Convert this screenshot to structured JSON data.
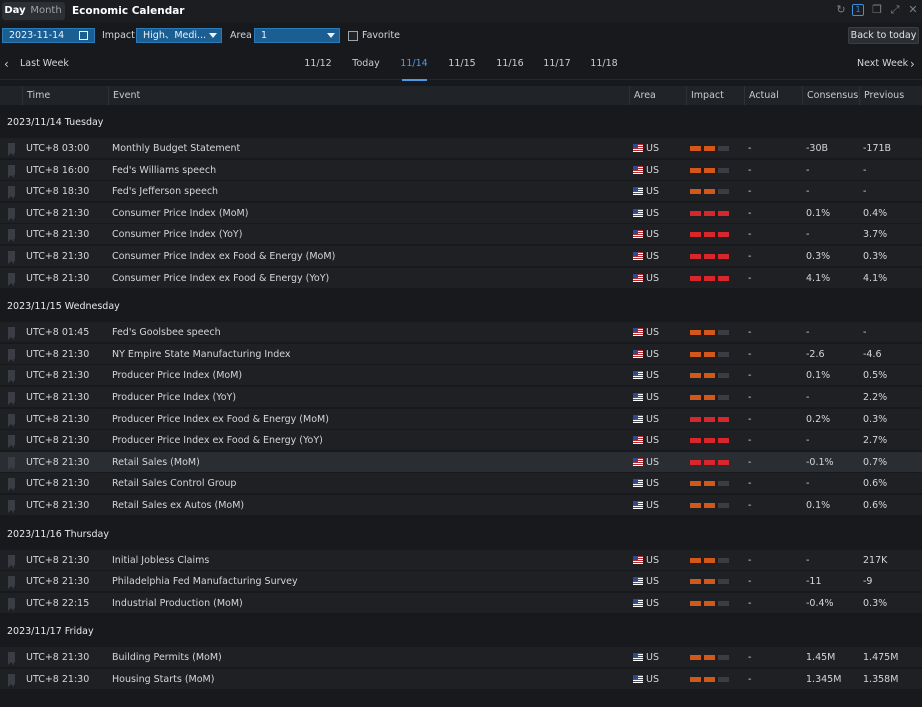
{
  "titlebar": {
    "tabs": [
      "Day",
      "Month"
    ],
    "title": "Economic Calendar",
    "link_badge": "1"
  },
  "filters": {
    "date": "2023-11-14",
    "impact_label": "Impact",
    "impact_value": "High、Medi...",
    "area_label": "Area",
    "area_value": "1",
    "favorite_label": "Favorite",
    "back_to_today": "Back to today"
  },
  "weeknav": {
    "prev": "Last Week",
    "next": "Next Week",
    "days": [
      "11/12",
      "Today",
      "11/14",
      "11/15",
      "11/16",
      "11/17",
      "11/18"
    ],
    "active_index": 2
  },
  "columns": [
    "Time",
    "Event",
    "Area",
    "Impact",
    "Actual",
    "Consensus",
    "Previous"
  ],
  "colors": {
    "high": "#d7262c",
    "medium": "#d4571a",
    "inactive": "#3a3d42",
    "accent": "#4c9ae6"
  },
  "groups": [
    {
      "title": "2023/11/14 Tuesday",
      "rows": [
        {
          "time": "UTC+8 03:00",
          "event": "Monthly Budget Statement",
          "area": "US",
          "impact": "medium",
          "actual": "-",
          "consensus": "-30B",
          "previous": "-171B"
        },
        {
          "time": "UTC+8 16:00",
          "event": "Fed's Williams speech",
          "area": "US",
          "impact": "medium",
          "actual": "-",
          "consensus": "-",
          "previous": "-"
        },
        {
          "time": "UTC+8 18:30",
          "event": "Fed's Jefferson speech",
          "area": "US",
          "impact": "medium",
          "actual": "-",
          "consensus": "-",
          "previous": "-"
        },
        {
          "time": "UTC+8 21:30",
          "event": "Consumer Price Index (MoM)",
          "area": "US",
          "impact": "high",
          "actual": "-",
          "consensus": "0.1%",
          "previous": "0.4%"
        },
        {
          "time": "UTC+8 21:30",
          "event": "Consumer Price Index (YoY)",
          "area": "US",
          "impact": "high",
          "actual": "-",
          "consensus": "-",
          "previous": "3.7%"
        },
        {
          "time": "UTC+8 21:30",
          "event": "Consumer Price Index ex Food & Energy (MoM)",
          "area": "US",
          "impact": "high",
          "actual": "-",
          "consensus": "0.3%",
          "previous": "0.3%"
        },
        {
          "time": "UTC+8 21:30",
          "event": "Consumer Price Index ex Food & Energy (YoY)",
          "area": "US",
          "impact": "high",
          "actual": "-",
          "consensus": "4.1%",
          "previous": "4.1%"
        }
      ]
    },
    {
      "title": "2023/11/15 Wednesday",
      "rows": [
        {
          "time": "UTC+8 01:45",
          "event": "Fed's Goolsbee speech",
          "area": "US",
          "impact": "medium",
          "actual": "-",
          "consensus": "-",
          "previous": "-"
        },
        {
          "time": "UTC+8 21:30",
          "event": "NY Empire State Manufacturing Index",
          "area": "US",
          "impact": "medium",
          "actual": "-",
          "consensus": "-2.6",
          "previous": "-4.6"
        },
        {
          "time": "UTC+8 21:30",
          "event": "Producer Price Index (MoM)",
          "area": "US",
          "impact": "medium",
          "actual": "-",
          "consensus": "0.1%",
          "previous": "0.5%"
        },
        {
          "time": "UTC+8 21:30",
          "event": "Producer Price Index (YoY)",
          "area": "US",
          "impact": "medium",
          "actual": "-",
          "consensus": "-",
          "previous": "2.2%"
        },
        {
          "time": "UTC+8 21:30",
          "event": "Producer Price Index ex Food & Energy (MoM)",
          "area": "US",
          "impact": "high",
          "actual": "-",
          "consensus": "0.2%",
          "previous": "0.3%"
        },
        {
          "time": "UTC+8 21:30",
          "event": "Producer Price Index ex Food & Energy (YoY)",
          "area": "US",
          "impact": "high",
          "actual": "-",
          "consensus": "-",
          "previous": "2.7%"
        },
        {
          "time": "UTC+8 21:30",
          "event": "Retail Sales (MoM)",
          "area": "US",
          "impact": "high",
          "actual": "-",
          "consensus": "-0.1%",
          "previous": "0.7%",
          "highlighted": true
        },
        {
          "time": "UTC+8 21:30",
          "event": "Retail Sales Control Group",
          "area": "US",
          "impact": "medium",
          "actual": "-",
          "consensus": "-",
          "previous": "0.6%"
        },
        {
          "time": "UTC+8 21:30",
          "event": "Retail Sales ex Autos (MoM)",
          "area": "US",
          "impact": "medium",
          "actual": "-",
          "consensus": "0.1%",
          "previous": "0.6%"
        }
      ]
    },
    {
      "title": "2023/11/16 Thursday",
      "rows": [
        {
          "time": "UTC+8 21:30",
          "event": "Initial Jobless Claims",
          "area": "US",
          "impact": "medium",
          "actual": "-",
          "consensus": "-",
          "previous": "217K"
        },
        {
          "time": "UTC+8 21:30",
          "event": "Philadelphia Fed Manufacturing Survey",
          "area": "US",
          "impact": "medium",
          "actual": "-",
          "consensus": "-11",
          "previous": "-9"
        },
        {
          "time": "UTC+8 22:15",
          "event": "Industrial Production (MoM)",
          "area": "US",
          "impact": "medium",
          "actual": "-",
          "consensus": "-0.4%",
          "previous": "0.3%"
        }
      ]
    },
    {
      "title": "2023/11/17 Friday",
      "rows": [
        {
          "time": "UTC+8 21:30",
          "event": "Building Permits (MoM)",
          "area": "US",
          "impact": "medium",
          "actual": "-",
          "consensus": "1.45M",
          "previous": "1.475M"
        },
        {
          "time": "UTC+8 21:30",
          "event": "Housing Starts (MoM)",
          "area": "US",
          "impact": "medium",
          "actual": "-",
          "consensus": "1.345M",
          "previous": "1.358M"
        }
      ]
    }
  ]
}
